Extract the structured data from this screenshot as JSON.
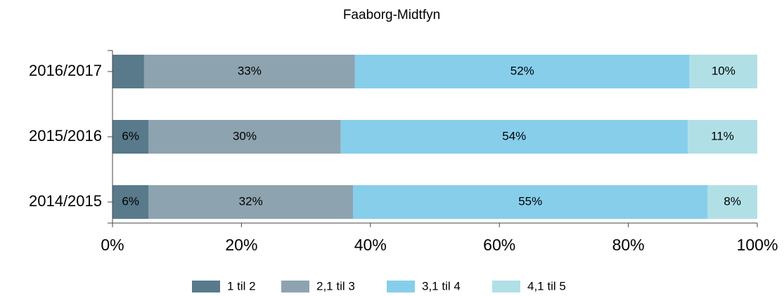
{
  "chart_data": {
    "type": "stacked_barh",
    "title": "Faaborg-Midtfyn",
    "categories": [
      "2016/2017",
      "2015/2016",
      "2014/2015"
    ],
    "series": [
      {
        "name": "1 til 2",
        "color": "#587a8b",
        "values": [
          4.9,
          5.6,
          5.6
        ],
        "value_labels": [
          null,
          "6%",
          "6%"
        ]
      },
      {
        "name": "2,1 til 3",
        "color": "#8ea3b0",
        "values": [
          32.7,
          29.8,
          31.7
        ],
        "value_labels": [
          "33%",
          "30%",
          "32%"
        ]
      },
      {
        "name": "3,1 til 4",
        "color": "#87ceeb",
        "values": [
          51.9,
          53.8,
          55.0
        ],
        "value_labels": [
          "52%",
          "54%",
          "55%"
        ]
      },
      {
        "name": "4,1 til 5",
        "color": "#b0e0e6",
        "values": [
          10.5,
          10.8,
          7.7
        ],
        "value_labels": [
          "10%",
          "11%",
          "8%"
        ]
      }
    ],
    "xlim": [
      0,
      100
    ],
    "xticks": [
      {
        "value": 0,
        "label": "0%"
      },
      {
        "value": 20,
        "label": "20%"
      },
      {
        "value": 40,
        "label": "40%"
      },
      {
        "value": 60,
        "label": "60%"
      },
      {
        "value": 80,
        "label": "80%"
      },
      {
        "value": 100,
        "label": "100%"
      }
    ],
    "legend": "bottom"
  }
}
